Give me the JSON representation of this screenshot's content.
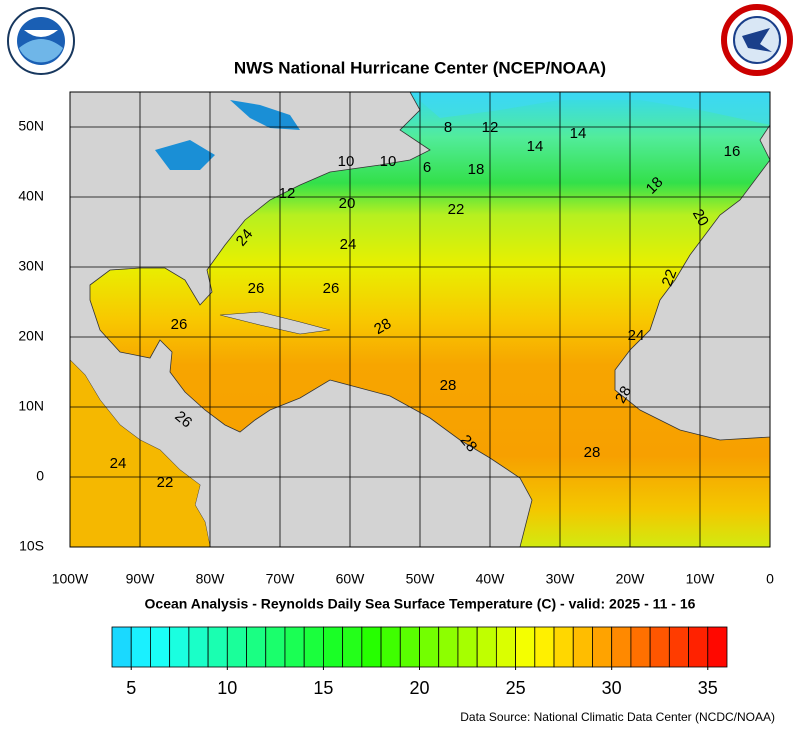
{
  "header": {
    "title": "NWS National Hurricane Center (NCEP/NOAA)"
  },
  "map": {
    "lon_range": [
      -100,
      0
    ],
    "lat_range": [
      -10,
      55
    ],
    "lon_ticks": [
      {
        "value": -100,
        "label": "100W"
      },
      {
        "value": -90,
        "label": "90W"
      },
      {
        "value": -80,
        "label": "80W"
      },
      {
        "value": -70,
        "label": "70W"
      },
      {
        "value": -60,
        "label": "60W"
      },
      {
        "value": -50,
        "label": "50W"
      },
      {
        "value": -40,
        "label": "40W"
      },
      {
        "value": -30,
        "label": "30W"
      },
      {
        "value": -20,
        "label": "20W"
      },
      {
        "value": -10,
        "label": "10W"
      },
      0
    ],
    "lat_ticks": [
      {
        "value": -10,
        "label": "10S"
      },
      0,
      {
        "value": 10,
        "label": "10N"
      },
      {
        "value": 20,
        "label": "20N"
      },
      {
        "value": 30,
        "label": "30N"
      },
      {
        "value": 40,
        "label": "40N"
      },
      {
        "value": 50,
        "label": "50N"
      }
    ],
    "contour_labels": [
      8,
      12,
      14,
      14,
      16,
      10,
      10,
      6,
      18,
      18,
      12,
      20,
      22,
      20,
      24,
      24,
      22,
      26,
      26,
      28,
      26,
      24,
      28,
      28,
      26,
      28,
      28,
      24,
      22
    ]
  },
  "subtitle": "Ocean Analysis - Reynolds Daily Sea Surface Temperature (C) - valid: 2025 - 11 - 16",
  "colorbar": {
    "range": [
      4,
      36
    ],
    "ticks": [
      5,
      10,
      15,
      20,
      25,
      30,
      35
    ]
  },
  "footer": {
    "source": "Data Source: National Climatic Data Center (NCDC/NOAA)"
  }
}
